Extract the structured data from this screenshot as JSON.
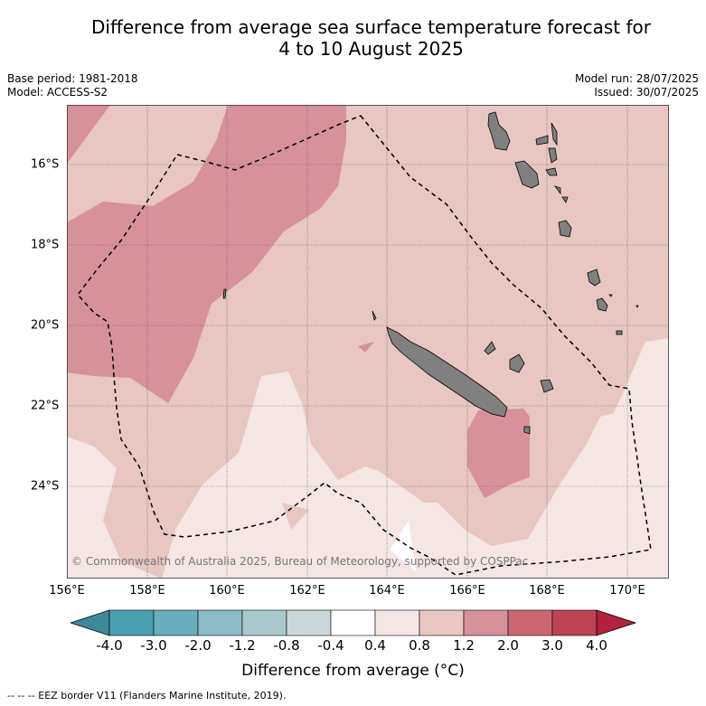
{
  "title_line1": "Difference from average sea surface temperature forecast for",
  "title_line2": "4 to 10 August 2025",
  "base_period": "Base period: 1981-2018",
  "model": "Model: ACCESS-S2",
  "model_run": "Model run: 28/07/2025",
  "issued": "Issued: 30/07/2025",
  "x_ticks": [
    "156°E",
    "158°E",
    "160°E",
    "162°E",
    "164°E",
    "166°E",
    "168°E",
    "170°E"
  ],
  "y_ticks": [
    "16°S",
    "18°S",
    "20°S",
    "22°S",
    "24°S"
  ],
  "colorbar_labels": [
    "-4.0",
    "-3.0",
    "-2.0",
    "-1.2",
    "-0.8",
    "-0.4",
    "0.4",
    "0.8",
    "1.2",
    "2.0",
    "3.0",
    "4.0"
  ],
  "colorbar_colors": [
    "#4aa0b0",
    "#6aadbc",
    "#8cbac5",
    "#a9c9cd",
    "#cbd8da",
    "#ffffff",
    "#f5e6e4",
    "#e8c6c1",
    "#d6919a",
    "#cc6673",
    "#bd4254"
  ],
  "colorbar_extend_low": "#3f8a99",
  "colorbar_extend_high": "#b3213e",
  "colorbar_title": "Difference from average (°C)",
  "copyright": "© Commonwealth of Australia 2025, Bureau of Meteorology, supported by COSPPac",
  "eez_legend": "-- -- -- EEZ border V11 (Flanders Marine Institute, 2019)."
}
